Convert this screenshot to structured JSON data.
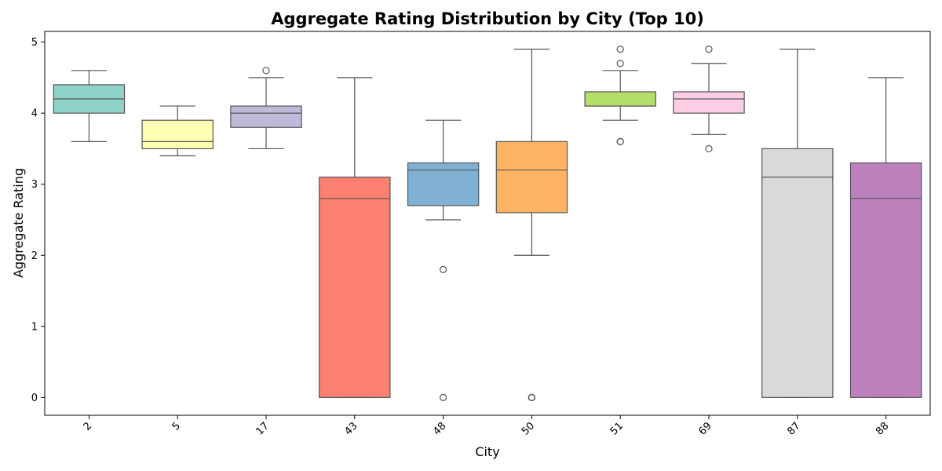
{
  "chart_data": {
    "type": "box",
    "title": "Aggregate Rating Distribution by City (Top 10)",
    "xlabel": "City",
    "ylabel": "Aggregate Rating",
    "ylim": [
      -0.25,
      5.15
    ],
    "yticks": [
      0,
      1,
      2,
      3,
      4,
      5
    ],
    "grid": false,
    "legend": "none",
    "categories": [
      "2",
      "5",
      "17",
      "43",
      "48",
      "50",
      "51",
      "69",
      "87",
      "88"
    ],
    "boxes": [
      {
        "category": "2",
        "whisker_low": 3.6,
        "q1": 4.0,
        "median": 4.2,
        "q3": 4.4,
        "whisker_high": 4.6,
        "outliers": [],
        "color": "#8dd3c7"
      },
      {
        "category": "5",
        "whisker_low": 3.4,
        "q1": 3.5,
        "median": 3.6,
        "q3": 3.9,
        "whisker_high": 4.1,
        "outliers": [],
        "color": "#ffffb3"
      },
      {
        "category": "17",
        "whisker_low": 3.5,
        "q1": 3.8,
        "median": 4.0,
        "q3": 4.1,
        "whisker_high": 4.5,
        "outliers": [
          4.6
        ],
        "color": "#bebada"
      },
      {
        "category": "43",
        "whisker_low": 0.0,
        "q1": 0.0,
        "median": 2.8,
        "q3": 3.1,
        "whisker_high": 4.5,
        "outliers": [],
        "color": "#fb8072"
      },
      {
        "category": "48",
        "whisker_low": 2.5,
        "q1": 2.7,
        "median": 3.2,
        "q3": 3.3,
        "whisker_high": 3.9,
        "outliers": [
          1.8,
          0.0
        ],
        "color": "#80b1d3"
      },
      {
        "category": "50",
        "whisker_low": 2.0,
        "q1": 2.6,
        "median": 3.2,
        "q3": 3.6,
        "whisker_high": 4.9,
        "outliers": [
          0.0,
          0.0,
          0.0
        ],
        "color": "#fdb462"
      },
      {
        "category": "51",
        "whisker_low": 3.9,
        "q1": 4.1,
        "median": 4.1,
        "q3": 4.3,
        "whisker_high": 4.6,
        "outliers": [
          4.9,
          4.7,
          3.6,
          3.6
        ],
        "color": "#b3de69"
      },
      {
        "category": "69",
        "whisker_low": 3.7,
        "q1": 4.0,
        "median": 4.2,
        "q3": 4.3,
        "whisker_high": 4.7,
        "outliers": [
          4.9,
          3.5
        ],
        "color": "#fccde5"
      },
      {
        "category": "87",
        "whisker_low": 0.0,
        "q1": 0.0,
        "median": 3.1,
        "q3": 3.5,
        "whisker_high": 4.9,
        "outliers": [],
        "color": "#d9d9d9"
      },
      {
        "category": "88",
        "whisker_low": 0.0,
        "q1": 0.0,
        "median": 2.8,
        "q3": 3.3,
        "whisker_high": 4.5,
        "outliers": [],
        "color": "#bc80bd"
      }
    ]
  }
}
